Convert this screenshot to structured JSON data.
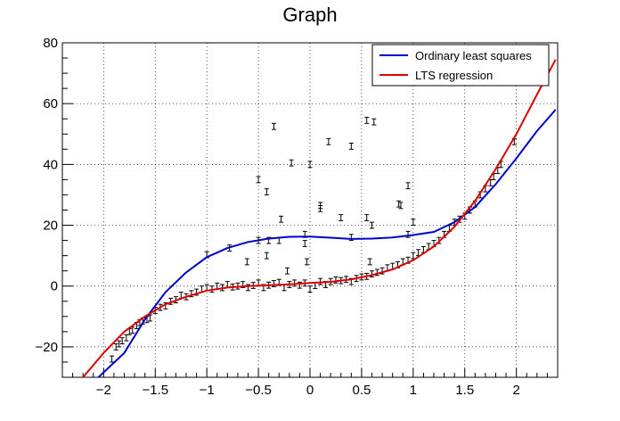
{
  "chart_data": {
    "type": "scatter",
    "title": "Graph",
    "xlabel": "",
    "ylabel": "",
    "xlim": [
      -2.4,
      2.4
    ],
    "ylim": [
      -30,
      80
    ],
    "x_ticks": [
      -2,
      -1.5,
      -1,
      -0.5,
      0,
      0.5,
      1,
      1.5,
      2
    ],
    "x_tick_labels": [
      "−2",
      "−1.5",
      "−1",
      "−0.5",
      "0",
      "0.5",
      "1",
      "1.5",
      "2"
    ],
    "y_ticks": [
      -20,
      0,
      20,
      40,
      60,
      80
    ],
    "y_tick_labels": [
      "−20",
      "0",
      "20",
      "40",
      "60",
      "80"
    ],
    "grid": true,
    "legend_position": "top-right",
    "error_bar": 1.0,
    "series": [
      {
        "name": "Ordinary least squares",
        "type": "line",
        "color": "#0000cc",
        "points": [
          [
            -2.05,
            -36
          ],
          [
            -1.8,
            -22
          ],
          [
            -1.6,
            -11
          ],
          [
            -1.4,
            -2
          ],
          [
            -1.2,
            4.5
          ],
          [
            -1.0,
            9.5
          ],
          [
            -0.8,
            12.5
          ],
          [
            -0.6,
            14.5
          ],
          [
            -0.4,
            15.6
          ],
          [
            -0.2,
            16.2
          ],
          [
            0.0,
            16.3
          ],
          [
            0.2,
            15.9
          ],
          [
            0.4,
            15.5
          ],
          [
            0.6,
            15.6
          ],
          [
            0.8,
            16
          ],
          [
            1.0,
            16.8
          ],
          [
            1.2,
            17.8
          ],
          [
            1.4,
            21
          ],
          [
            1.6,
            26
          ],
          [
            1.8,
            33.5
          ],
          [
            2.0,
            42
          ],
          [
            2.2,
            51
          ],
          [
            2.38,
            58
          ]
        ]
      },
      {
        "name": "LTS regression",
        "type": "line",
        "color": "#dd0000",
        "points": [
          [
            -2.2,
            -30
          ],
          [
            -2.0,
            -22
          ],
          [
            -1.8,
            -15
          ],
          [
            -1.6,
            -10
          ],
          [
            -1.4,
            -6
          ],
          [
            -1.2,
            -3.5
          ],
          [
            -1.0,
            -1.5
          ],
          [
            -0.8,
            -0.5
          ],
          [
            -0.6,
            0
          ],
          [
            -0.4,
            0.3
          ],
          [
            -0.2,
            0.6
          ],
          [
            0.0,
            1.0
          ],
          [
            0.2,
            1.4
          ],
          [
            0.4,
            2.2
          ],
          [
            0.6,
            3.6
          ],
          [
            0.8,
            5.5
          ],
          [
            1.0,
            8.5
          ],
          [
            1.2,
            13
          ],
          [
            1.4,
            19.5
          ],
          [
            1.6,
            28
          ],
          [
            1.8,
            38.5
          ],
          [
            2.0,
            50
          ],
          [
            2.2,
            63
          ],
          [
            2.38,
            74.5
          ]
        ]
      },
      {
        "name": "data",
        "type": "scatter",
        "color": "#000000",
        "points": [
          [
            -1.92,
            -24
          ],
          [
            -1.88,
            -20
          ],
          [
            -1.85,
            -19
          ],
          [
            -1.82,
            -18
          ],
          [
            -1.78,
            -17
          ],
          [
            -1.75,
            -15
          ],
          [
            -1.72,
            -14.5
          ],
          [
            -1.68,
            -13
          ],
          [
            -1.65,
            -12
          ],
          [
            -1.62,
            -11.5
          ],
          [
            -1.58,
            -11
          ],
          [
            -1.55,
            -10.5
          ],
          [
            -1.5,
            -8
          ],
          [
            -1.45,
            -7
          ],
          [
            -1.4,
            -6.5
          ],
          [
            -1.35,
            -5
          ],
          [
            -1.3,
            -4.5
          ],
          [
            -1.25,
            -3
          ],
          [
            -1.2,
            -3.5
          ],
          [
            -1.15,
            -2.5
          ],
          [
            -1.1,
            -2
          ],
          [
            -1.05,
            -1
          ],
          [
            -1.0,
            -0.5
          ],
          [
            -0.95,
            -1
          ],
          [
            -0.9,
            0
          ],
          [
            -0.85,
            -0.5
          ],
          [
            -0.8,
            0.5
          ],
          [
            -0.75,
            -0.3
          ],
          [
            -0.7,
            0
          ],
          [
            -0.65,
            0.5
          ],
          [
            -0.6,
            -0.5
          ],
          [
            -0.55,
            0.2
          ],
          [
            -0.5,
            1
          ],
          [
            -0.45,
            -0.5
          ],
          [
            -0.4,
            0.3
          ],
          [
            -0.35,
            0.8
          ],
          [
            -0.3,
            1.2
          ],
          [
            -0.25,
            -0.5
          ],
          [
            -0.2,
            0.5
          ],
          [
            -0.15,
            1
          ],
          [
            -0.1,
            0.3
          ],
          [
            -0.05,
            1
          ],
          [
            0.0,
            -1
          ],
          [
            0.05,
            0.2
          ],
          [
            0.1,
            1.5
          ],
          [
            0.15,
            0.5
          ],
          [
            0.2,
            1.5
          ],
          [
            0.25,
            2
          ],
          [
            0.3,
            1.8
          ],
          [
            0.35,
            2.2
          ],
          [
            0.4,
            1.5
          ],
          [
            0.45,
            2.5
          ],
          [
            0.5,
            3
          ],
          [
            0.55,
            3.2
          ],
          [
            0.6,
            4
          ],
          [
            0.65,
            4.5
          ],
          [
            0.7,
            5
          ],
          [
            0.75,
            6
          ],
          [
            0.8,
            6.5
          ],
          [
            0.85,
            7
          ],
          [
            0.9,
            8
          ],
          [
            0.95,
            8.5
          ],
          [
            1.0,
            10
          ],
          [
            1.05,
            11
          ],
          [
            1.1,
            12
          ],
          [
            1.15,
            13
          ],
          [
            1.2,
            14
          ],
          [
            1.25,
            15
          ],
          [
            1.3,
            17
          ],
          [
            1.35,
            19
          ],
          [
            1.4,
            21
          ],
          [
            1.45,
            22
          ],
          [
            1.5,
            23
          ],
          [
            1.55,
            25
          ],
          [
            1.6,
            27
          ],
          [
            1.65,
            30
          ],
          [
            1.7,
            32
          ],
          [
            1.75,
            34
          ],
          [
            1.78,
            36
          ],
          [
            1.82,
            38
          ],
          [
            1.85,
            40
          ],
          [
            1.98,
            47.5
          ],
          [
            -1.0,
            10.3
          ],
          [
            -0.78,
            12.5
          ],
          [
            -0.61,
            8
          ],
          [
            -0.5,
            15
          ],
          [
            -0.4,
            15
          ],
          [
            -0.42,
            10
          ],
          [
            -0.3,
            15
          ],
          [
            -0.28,
            22
          ],
          [
            -0.22,
            5
          ],
          [
            -0.05,
            17
          ],
          [
            -0.05,
            14
          ],
          [
            -0.03,
            8
          ],
          [
            0.1,
            25.5
          ],
          [
            0.1,
            26.5
          ],
          [
            0.3,
            22.5
          ],
          [
            0.4,
            16
          ],
          [
            0.55,
            22.5
          ],
          [
            0.6,
            20
          ],
          [
            0.58,
            8
          ],
          [
            0.86,
            27
          ],
          [
            0.88,
            26.5
          ],
          [
            0.95,
            33
          ],
          [
            1.0,
            21
          ],
          [
            0.95,
            17
          ],
          [
            -0.5,
            35
          ],
          [
            -0.42,
            31
          ],
          [
            -0.18,
            40.5
          ],
          [
            0.0,
            40
          ],
          [
            0.18,
            47.5
          ],
          [
            0.4,
            46
          ],
          [
            0.55,
            54.5
          ],
          [
            0.62,
            54
          ],
          [
            -0.35,
            52.5
          ]
        ]
      }
    ]
  }
}
